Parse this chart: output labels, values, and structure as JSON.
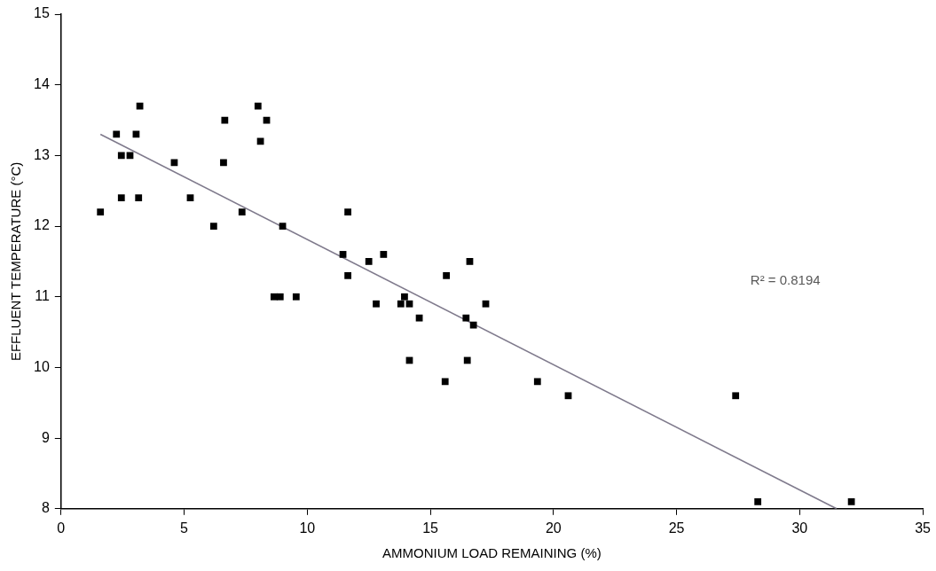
{
  "chart_data": {
    "type": "scatter",
    "xlabel": "AMMONIUM LOAD REMAINING (%)",
    "ylabel": "EFFLUENT TEMPERATURE (°C)",
    "marker": "square",
    "grid": false,
    "legend": false,
    "xlim": [
      0,
      35
    ],
    "xticks": [
      0,
      5,
      10,
      15,
      20,
      25,
      30,
      35
    ],
    "ylim": [
      8,
      15
    ],
    "yticks": [
      8,
      9,
      10,
      11,
      12,
      13,
      14,
      15
    ],
    "annotations": [
      "R² = 0.8194"
    ],
    "series": [
      {
        "color": "#000000",
        "x": [
          1.6,
          2.25,
          2.45,
          2.8,
          2.45,
          3.05,
          3.2,
          3.15,
          4.6,
          5.25,
          6.2,
          6.6,
          6.65,
          7.35,
          8.0,
          8.1,
          8.35,
          9.0,
          8.65,
          8.9,
          9.55,
          11.65,
          11.45,
          12.5,
          13.1,
          11.65,
          15.65,
          16.6,
          12.8,
          13.95,
          13.8,
          14.15,
          14.55,
          17.25,
          16.45,
          16.75,
          14.15,
          16.5,
          15.6,
          19.35,
          20.6,
          27.4,
          28.3,
          32.1
        ],
        "values": [
          12.2,
          13.3,
          13.0,
          13.0,
          12.4,
          13.3,
          13.7,
          12.4,
          12.9,
          12.4,
          12.0,
          12.9,
          13.5,
          12.2,
          13.7,
          13.2,
          13.5,
          12.0,
          11.0,
          11.0,
          11.0,
          12.2,
          11.6,
          11.5,
          11.6,
          11.3,
          11.3,
          11.5,
          10.9,
          11.0,
          10.9,
          10.9,
          10.7,
          10.9,
          10.7,
          10.6,
          10.1,
          10.1,
          9.8,
          9.8,
          9.6,
          9.6,
          8.1,
          8.1
        ]
      },
      {
        "type": "line",
        "color": "#7f7a8c",
        "marker": "none",
        "x": [
          1.6,
          31.5
        ],
        "values": [
          13.3,
          8.0
        ]
      }
    ]
  }
}
